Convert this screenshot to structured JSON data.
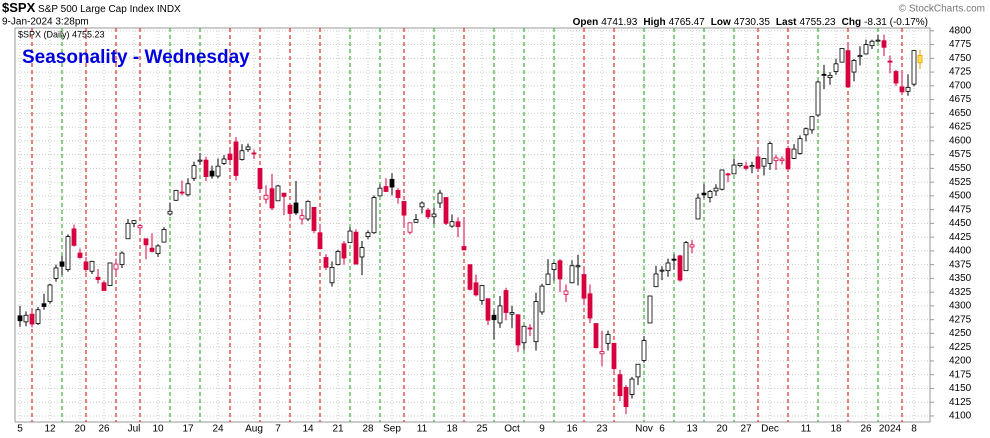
{
  "chart_data": {
    "type": "candlestick",
    "symbol": "$SPX",
    "name": "S&P 500 Large Cap Index",
    "exchange": "INDX",
    "date": "9-Jan-2024 3:28pm",
    "copyright": "© StockCharts.com",
    "title": "Seasonality - Wednesday",
    "quote": [
      {
        "label": "Open",
        "value": 4741.93
      },
      {
        "label": "High",
        "value": 4765.47
      },
      {
        "label": "Low",
        "value": 4730.35
      },
      {
        "label": "Last",
        "value": 4755.23
      },
      {
        "label": "Chg",
        "value": "-8.31 (-0.17%)"
      }
    ],
    "categories": [
      "5",
      null,
      null,
      null,
      null,
      "12",
      null,
      null,
      null,
      null,
      "20",
      null,
      null,
      null,
      "26",
      null,
      null,
      null,
      null,
      "Jul",
      null,
      null,
      null,
      "10",
      null,
      null,
      null,
      null,
      "17",
      null,
      null,
      null,
      null,
      "24",
      null,
      null,
      null,
      null,
      null,
      "Aug",
      null,
      null,
      null,
      "7",
      null,
      null,
      null,
      null,
      "14",
      null,
      null,
      null,
      null,
      "21",
      null,
      null,
      null,
      null,
      "28",
      null,
      null,
      null,
      "Sep",
      null,
      null,
      null,
      null,
      "11",
      null,
      null,
      null,
      null,
      "18",
      null,
      null,
      null,
      null,
      "25",
      null,
      null,
      null,
      null,
      "Oct",
      null,
      null,
      null,
      null,
      "9",
      null,
      null,
      null,
      null,
      "16",
      null,
      null,
      null,
      null,
      "23",
      null,
      null,
      null,
      null,
      null,
      null,
      "Nov",
      null,
      null,
      "6",
      null,
      null,
      null,
      null,
      "13",
      null,
      null,
      null,
      null,
      "20",
      null,
      null,
      null,
      "27",
      null,
      null,
      null,
      "Dec",
      null,
      null,
      null,
      null,
      null,
      "11",
      null,
      null,
      null,
      null,
      "18",
      null,
      null,
      null,
      null,
      "26",
      null,
      null,
      null,
      "2024",
      null,
      null,
      null,
      "8",
      null
    ],
    "series": [
      {
        "name": "$SPX (Daily) 4755.23",
        "up_color": "#000000",
        "down_color": "#d6003f",
        "last_fill": "#ffe14d",
        "last_stroke": "#e8a000",
        "open": [
          4282,
          4271,
          4285,
          4268,
          4304,
          4308,
          4350,
          4380,
          4366,
          4440,
          4396,
          4380,
          4363,
          4352,
          4342,
          4337,
          4367,
          4375,
          4422,
          4450,
          4442,
          4422,
          4405,
          4395,
          4416,
          4467,
          4492,
          4507,
          4502,
          4532,
          4563,
          4565,
          4545,
          4536,
          4559,
          4576,
          4598,
          4566,
          4584,
          4578,
          4550,
          4494,
          4513,
          4491,
          4505,
          4483,
          4487,
          4458,
          4458,
          4479,
          4433,
          4388,
          4342,
          4375,
          4413,
          4415,
          4434,
          4389,
          4426,
          4433,
          4500,
          4517,
          4530,
          4510,
          4490,
          4434,
          4452,
          4480,
          4474,
          4462,
          4487,
          4497,
          4445,
          4453,
          4408,
          4375,
          4342,
          4310,
          4313,
          4283,
          4269,
          4328,
          4285,
          4284,
          4233,
          4260,
          4235,
          4289,
          4339,
          4366,
          4382,
          4321,
          4342,
          4371,
          4357,
          4322,
          4268,
          4213,
          4232,
          4232,
          4175,
          4152,
          4139,
          4171,
          4201,
          4269,
          4335,
          4364,
          4364,
          4385,
          4391,
          4364,
          4407,
          4458,
          4505,
          4497,
          4509,
          4512,
          4540,
          4540,
          4555,
          4554,
          4553,
          4571,
          4554,
          4559,
          4564,
          4564,
          4586,
          4568,
          4577,
          4611,
          4620,
          4647,
          4721,
          4715,
          4726,
          4743,
          4764,
          4725,
          4753,
          4758,
          4773,
          4782,
          4782,
          4745,
          4726,
          4698,
          4690,
          4703,
          4741.93
        ],
        "high": [
          4300,
          4290,
          4292,
          4298,
          4322,
          4340,
          4375,
          4391,
          4430,
          4448,
          4404,
          4389,
          4382,
          4367,
          4346,
          4379,
          4386,
          4399,
          4458,
          4456,
          4448,
          4422,
          4432,
          4412,
          4443,
          4488,
          4511,
          4528,
          4532,
          4562,
          4578,
          4571,
          4555,
          4568,
          4574,
          4583,
          4607,
          4594,
          4595,
          4584,
          4550,
          4519,
          4540,
          4520,
          4505,
          4485,
          4527,
          4476,
          4492,
          4479,
          4449,
          4394,
          4381,
          4402,
          4418,
          4443,
          4439,
          4418,
          4437,
          4501,
          4521,
          4532,
          4541,
          4514,
          4490,
          4452,
          4467,
          4490,
          4478,
          4479,
          4511,
          4497,
          4466,
          4461,
          4461,
          4375,
          4357,
          4338,
          4313,
          4293,
          4318,
          4333,
          4300,
          4284,
          4264,
          4267,
          4324,
          4340,
          4385,
          4379,
          4385,
          4339,
          4383,
          4393,
          4368,
          4339,
          4268,
          4255,
          4255,
          4232,
          4184,
          4156,
          4171,
          4194,
          4245,
          4319,
          4373,
          4372,
          4386,
          4394,
          4393,
          4418,
          4420,
          4504,
          4521,
          4511,
          4521,
          4548,
          4542,
          4568,
          4560,
          4562,
          4562,
          4587,
          4569,
          4599,
          4575,
          4572,
          4591,
          4594,
          4610,
          4624,
          4644,
          4709,
          4738,
          4725,
          4749,
          4768,
          4778,
          4749,
          4772,
          4784,
          4784,
          4793,
          4793,
          4755,
          4729,
          4727,
          4721,
          4764,
          4765.47
        ],
        "low": [
          4262,
          4263,
          4261,
          4265,
          4293,
          4304,
          4344,
          4356,
          4362,
          4408,
          4386,
          4361,
          4358,
          4341,
          4327,
          4336,
          4360,
          4369,
          4422,
          4443,
          4431,
          4385,
          4397,
          4389,
          4415,
          4464,
          4491,
          4501,
          4499,
          4527,
          4557,
          4527,
          4531,
          4532,
          4556,
          4561,
          4528,
          4564,
          4580,
          4567,
          4506,
          4486,
          4474,
          4491,
          4465,
          4461,
          4465,
          4448,
          4454,
          4432,
          4403,
          4365,
          4335,
          4374,
          4375,
          4415,
          4376,
          4356,
          4421,
          4431,
          4500,
          4507,
          4501,
          4486,
          4442,
          4430,
          4451,
          4468,
          4458,
          4449,
          4478,
          4447,
          4442,
          4425,
          4401,
          4328,
          4317,
          4302,
          4265,
          4239,
          4260,
          4274,
          4260,
          4216,
          4220,
          4245,
          4219,
          4284,
          4339,
          4346,
          4325,
          4307,
          4342,
          4337,
          4303,
          4269,
          4223,
          4190,
          4219,
          4182,
          4127,
          4103,
          4132,
          4156,
          4197,
          4269,
          4334,
          4347,
          4353,
          4366,
          4344,
          4364,
          4396,
          4458,
          4496,
          4488,
          4500,
          4510,
          4525,
          4540,
          4552,
          4546,
          4541,
          4545,
          4537,
          4547,
          4547,
          4557,
          4546,
          4567,
          4575,
          4599,
          4613,
          4643,
          4694,
          4702,
          4720,
          4743,
          4697,
          4708,
          4737,
          4757,
          4767,
          4780,
          4754,
          4723,
          4700,
          4683,
          4682,
          4699,
          4730.35
        ],
        "close": [
          4273,
          4283,
          4267,
          4293,
          4299,
          4338,
          4369,
          4372,
          4426,
          4410,
          4388,
          4366,
          4381,
          4348,
          4328,
          4378,
          4376,
          4396,
          4450,
          4455,
          4446,
          4411,
          4399,
          4409,
          4439,
          4472,
          4510,
          4505,
          4522,
          4555,
          4565,
          4535,
          4536,
          4554,
          4567,
          4566,
          4537,
          4582,
          4589,
          4577,
          4513,
          4501,
          4478,
          4518,
          4499,
          4468,
          4469,
          4464,
          4490,
          4437,
          4404,
          4370,
          4370,
          4399,
          4387,
          4436,
          4376,
          4406,
          4433,
          4497,
          4514,
          4508,
          4516,
          4497,
          4465,
          4451,
          4457,
          4487,
          4462,
          4467,
          4505,
          4450,
          4453,
          4444,
          4402,
          4330,
          4320,
          4337,
          4274,
          4275,
          4300,
          4288,
          4288,
          4229,
          4263,
          4258,
          4308,
          4336,
          4358,
          4377,
          4349,
          4327,
          4373,
          4373,
          4314,
          4278,
          4224,
          4217,
          4248,
          4186,
          4137,
          4117,
          4167,
          4194,
          4237,
          4318,
          4358,
          4365,
          4378,
          4383,
          4347,
          4415,
          4411,
          4496,
          4502,
          4508,
          4514,
          4547,
          4538,
          4556,
          4559,
          4550,
          4555,
          4550,
          4568,
          4595,
          4569,
          4567,
          4549,
          4585,
          4604,
          4622,
          4644,
          4707,
          4719,
          4719,
          4740,
          4768,
          4698,
          4746,
          4755,
          4775,
          4781,
          4783,
          4770,
          4743,
          4705,
          4689,
          4697,
          4764,
          4755.23
        ]
      }
    ],
    "highlight": {
      "indices": [
        2,
        7,
        11,
        16,
        20,
        25,
        30,
        35,
        40,
        45,
        50,
        55,
        60,
        64,
        69,
        74,
        79,
        84,
        89,
        94,
        99,
        104,
        109,
        114,
        119,
        123,
        128,
        133,
        138,
        143,
        147
      ],
      "up_color": "#1a9a1a",
      "down_color": "#d40000"
    },
    "ylim": [
      4089,
      4816
    ],
    "yticks": [
      4100,
      4125,
      4150,
      4175,
      4200,
      4225,
      4250,
      4275,
      4300,
      4325,
      4350,
      4375,
      4400,
      4425,
      4450,
      4475,
      4500,
      4525,
      4550,
      4575,
      4600,
      4625,
      4650,
      4675,
      4700,
      4725,
      4750,
      4775,
      4800
    ],
    "grid": true
  }
}
